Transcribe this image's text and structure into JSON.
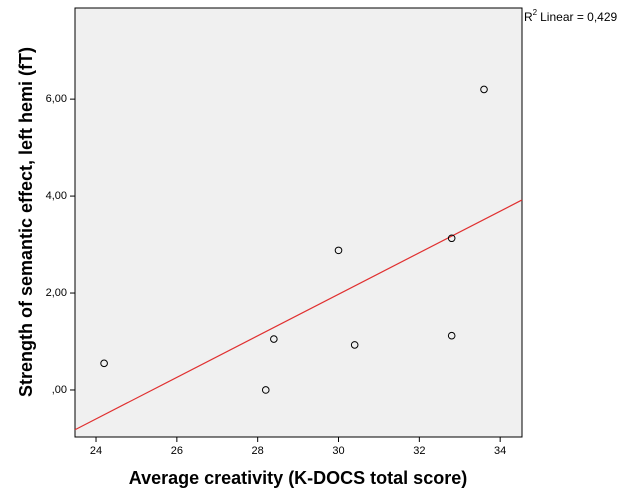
{
  "chart_data": {
    "type": "scatter",
    "x_label": "Average creativity (K-DOCS total score)",
    "y_label": "Strength of semantic effect, left hemi (fT)",
    "x": [
      24.2,
      28.2,
      28.4,
      30.0,
      30.4,
      32.8,
      32.8,
      33.6
    ],
    "y": [
      0.55,
      0.0,
      1.05,
      2.88,
      0.93,
      1.12,
      3.13,
      6.2
    ],
    "color": "#000000",
    "fit_line": {
      "color": "#e03030",
      "x": [
        23.48,
        34.54
      ],
      "y": [
        -0.82,
        3.92
      ]
    },
    "annotation": {
      "symbol": "R",
      "exponent": "2",
      "text": "Linear = 0,429"
    },
    "xlim": [
      23.48,
      34.54
    ],
    "xticks": [
      24,
      26,
      28,
      30,
      32,
      34
    ],
    "ylim": [
      -0.97,
      7.88
    ],
    "yticks": [
      {
        "value": 0,
        "label": ",00"
      },
      {
        "value": 2,
        "label": "2,00"
      },
      {
        "value": 4,
        "label": "4,00"
      },
      {
        "value": 6,
        "label": "6,00"
      }
    ],
    "background": "#f0f0f0"
  }
}
